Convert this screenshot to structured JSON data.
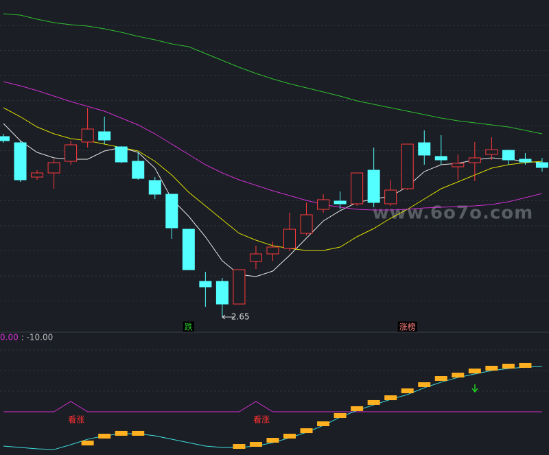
{
  "watermark": "www.6o7o.com",
  "chart_data": [
    {
      "type": "candlestick",
      "ylim": [
        2.578,
        4.498
      ],
      "up_color": "#ff3b3b",
      "down_color": "#54ffff",
      "open": [
        3.702,
        3.666,
        3.466,
        3.49,
        3.558,
        3.67,
        3.73,
        3.642,
        3.558,
        3.446,
        3.366,
        3.162,
        2.858,
        2.858,
        2.726,
        2.974,
        3.018,
        3.05,
        3.138,
        3.278,
        3.326,
        3.31,
        3.506,
        3.31,
        3.398,
        3.666,
        3.586,
        3.526,
        3.55,
        3.598,
        3.622,
        3.57,
        3.55
      ],
      "high": [
        3.718,
        3.678,
        3.506,
        3.57,
        3.678,
        3.87,
        3.818,
        3.646,
        3.61,
        3.466,
        3.366,
        3.162,
        2.914,
        2.878,
        2.926,
        3.066,
        3.09,
        3.258,
        3.318,
        3.366,
        3.382,
        3.49,
        3.638,
        3.45,
        3.658,
        3.738,
        3.71,
        3.598,
        3.67,
        3.698,
        3.626,
        3.606,
        3.578
      ],
      "low": [
        3.666,
        3.438,
        3.45,
        3.398,
        3.538,
        3.638,
        3.658,
        3.546,
        3.45,
        3.338,
        3.106,
        2.926,
        2.71,
        2.65,
        2.726,
        2.93,
        2.978,
        3.034,
        3.126,
        3.258,
        3.278,
        3.298,
        3.29,
        3.298,
        3.39,
        3.538,
        3.538,
        3.45,
        3.442,
        3.566,
        3.538,
        3.538,
        3.498
      ],
      "close": [
        3.678,
        3.45,
        3.49,
        3.55,
        3.654,
        3.746,
        3.682,
        3.554,
        3.458,
        3.366,
        3.17,
        2.926,
        2.826,
        2.726,
        2.926,
        3.018,
        3.058,
        3.162,
        3.246,
        3.334,
        3.31,
        3.49,
        3.318,
        3.39,
        3.658,
        3.594,
        3.566,
        3.546,
        3.578,
        3.626,
        3.566,
        3.554,
        3.522
      ],
      "low_value_labels": [
        null,
        null,
        null,
        null,
        null,
        null,
        null,
        null,
        null,
        null,
        null,
        null,
        null,
        "2.65",
        null,
        null,
        null,
        null,
        null,
        null,
        null,
        null,
        null,
        null,
        null,
        null,
        null,
        null,
        null,
        null,
        null,
        null,
        null
      ],
      "signals": [
        null,
        null,
        null,
        null,
        null,
        null,
        null,
        null,
        null,
        null,
        null,
        "跌",
        null,
        null,
        null,
        null,
        null,
        null,
        null,
        null,
        null,
        null,
        null,
        null,
        "涨榜",
        null,
        null,
        null,
        null,
        null,
        null,
        null,
        null
      ],
      "signal_colors": [
        "#30d030",
        "#ff8080"
      ],
      "lines": [
        {
          "color": "#e8e8e8",
          "values": [
            3.778,
            3.678,
            3.61,
            3.578,
            3.57,
            3.57,
            3.618,
            3.638,
            3.61,
            3.518,
            3.338,
            3.238,
            3.118,
            2.978,
            2.898,
            2.886,
            2.918,
            3.01,
            3.11,
            3.21,
            3.27,
            3.318,
            3.338,
            3.354,
            3.41,
            3.498,
            3.538,
            3.546,
            3.566,
            3.578,
            3.57,
            3.558,
            3.55
          ]
        },
        {
          "color": "#e0e000",
          "values": [
            3.87,
            3.818,
            3.758,
            3.718,
            3.69,
            3.678,
            3.658,
            3.638,
            3.618,
            3.558,
            3.478,
            3.378,
            3.298,
            3.218,
            3.138,
            3.098,
            3.066,
            3.05,
            3.038,
            3.038,
            3.058,
            3.118,
            3.166,
            3.226,
            3.278,
            3.338,
            3.398,
            3.438,
            3.478,
            3.518,
            3.538,
            3.55,
            3.558
          ]
        },
        {
          "color": "#d030d0",
          "values": [
            4.022,
            3.998,
            3.97,
            3.938,
            3.906,
            3.878,
            3.85,
            3.81,
            3.77,
            3.718,
            3.658,
            3.598,
            3.538,
            3.49,
            3.45,
            3.418,
            3.386,
            3.358,
            3.33,
            3.306,
            3.29,
            3.278,
            3.274,
            3.274,
            3.278,
            3.286,
            3.29,
            3.294,
            3.298,
            3.306,
            3.322,
            3.346,
            3.37
          ]
        },
        {
          "color": "#30c030",
          "values": [
            4.418,
            4.41,
            4.386,
            4.366,
            4.354,
            4.346,
            4.33,
            4.31,
            4.286,
            4.266,
            4.242,
            4.226,
            4.186,
            4.146,
            4.106,
            4.07,
            4.038,
            4.01,
            3.986,
            3.962,
            3.938,
            3.91,
            3.89,
            3.87,
            3.85,
            3.83,
            3.81,
            3.794,
            3.782,
            3.77,
            3.758,
            3.738,
            3.718
          ]
        }
      ]
    },
    {
      "type": "indicator",
      "ylim": [
        -42,
        76
      ],
      "header": [
        {
          "text": "0.00",
          "color": "#d030d0"
        },
        {
          "text": ": -10.00",
          "color": "#bbbbbb"
        }
      ],
      "signal": {
        "color": "#d030d0",
        "values": [
          0,
          0,
          0,
          0,
          10,
          0,
          0,
          0,
          0,
          0,
          0,
          0,
          0,
          0,
          0,
          10,
          0,
          0,
          0,
          0,
          0,
          0,
          0,
          0,
          0,
          0,
          0,
          0,
          0,
          0,
          0,
          0,
          0
        ]
      },
      "labels": [
        null,
        null,
        null,
        null,
        "看涨",
        null,
        null,
        null,
        null,
        null,
        null,
        null,
        null,
        null,
        null,
        "看涨",
        null,
        null,
        null,
        null,
        null,
        null,
        null,
        null,
        null,
        null,
        null,
        null,
        null,
        null,
        null,
        null,
        null
      ],
      "label_color": "#ff3030",
      "line": {
        "color": "#40e0e0",
        "values": [
          -33.3,
          -34.7,
          -36,
          -36.7,
          -32,
          -26.7,
          -23.3,
          -21.3,
          -21.3,
          -23.3,
          -26.7,
          -30,
          -33.3,
          -34.7,
          -34.7,
          -33.3,
          -30,
          -25.3,
          -20,
          -13.3,
          -5.3,
          1.3,
          6.7,
          12,
          16.7,
          23.3,
          28.7,
          33.3,
          36.7,
          40,
          42,
          43.3,
          44
        ]
      },
      "bars": {
        "color": "#ffb020",
        "values": [
          null,
          null,
          null,
          null,
          null,
          -30.7,
          -24,
          -21.3,
          -21.3,
          null,
          null,
          null,
          null,
          null,
          -34,
          -32,
          -28,
          -24,
          -18.7,
          -12,
          -4,
          2.7,
          8.7,
          13.3,
          20,
          26,
          32,
          35.3,
          39.3,
          42,
          44,
          44.7,
          null
        ]
      }
    }
  ]
}
